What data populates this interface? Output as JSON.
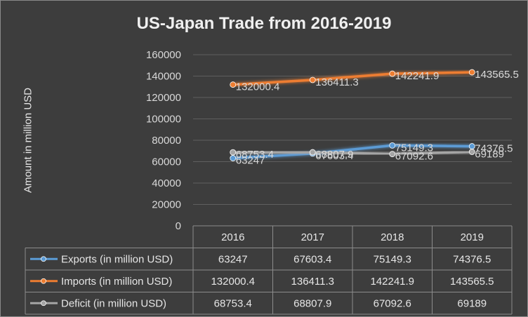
{
  "chart_data": {
    "type": "line",
    "title": "US-Japan Trade from 2016-2019",
    "ylabel": "Amount in million USD",
    "categories": [
      "2016",
      "2017",
      "2018",
      "2019"
    ],
    "ylim": [
      0,
      160000
    ],
    "yticks": [
      "0",
      "20000",
      "40000",
      "60000",
      "80000",
      "100000",
      "120000",
      "140000",
      "160000"
    ],
    "grid": true,
    "legend": "data-table",
    "series": [
      {
        "name": "Exports (in million USD)",
        "color": "#5b9bd5",
        "values": [
          63247,
          67603.4,
          75149.3,
          74376.5
        ],
        "labels": [
          "63247",
          "67603.4",
          "75149.3",
          "74376.5"
        ]
      },
      {
        "name": "Imports (in million USD)",
        "color": "#ed7d31",
        "values": [
          132000.4,
          136411.3,
          142241.9,
          143565.5
        ],
        "labels": [
          "132000.4",
          "136411.3",
          "142241.9",
          "143565.5"
        ]
      },
      {
        "name": "Deficit (in million USD)",
        "color": "#a5a5a5",
        "values": [
          68753.4,
          68807.9,
          67092.6,
          69189
        ],
        "labels": [
          "68753.4",
          "68807.9",
          "67092.6",
          "69189"
        ]
      }
    ]
  }
}
